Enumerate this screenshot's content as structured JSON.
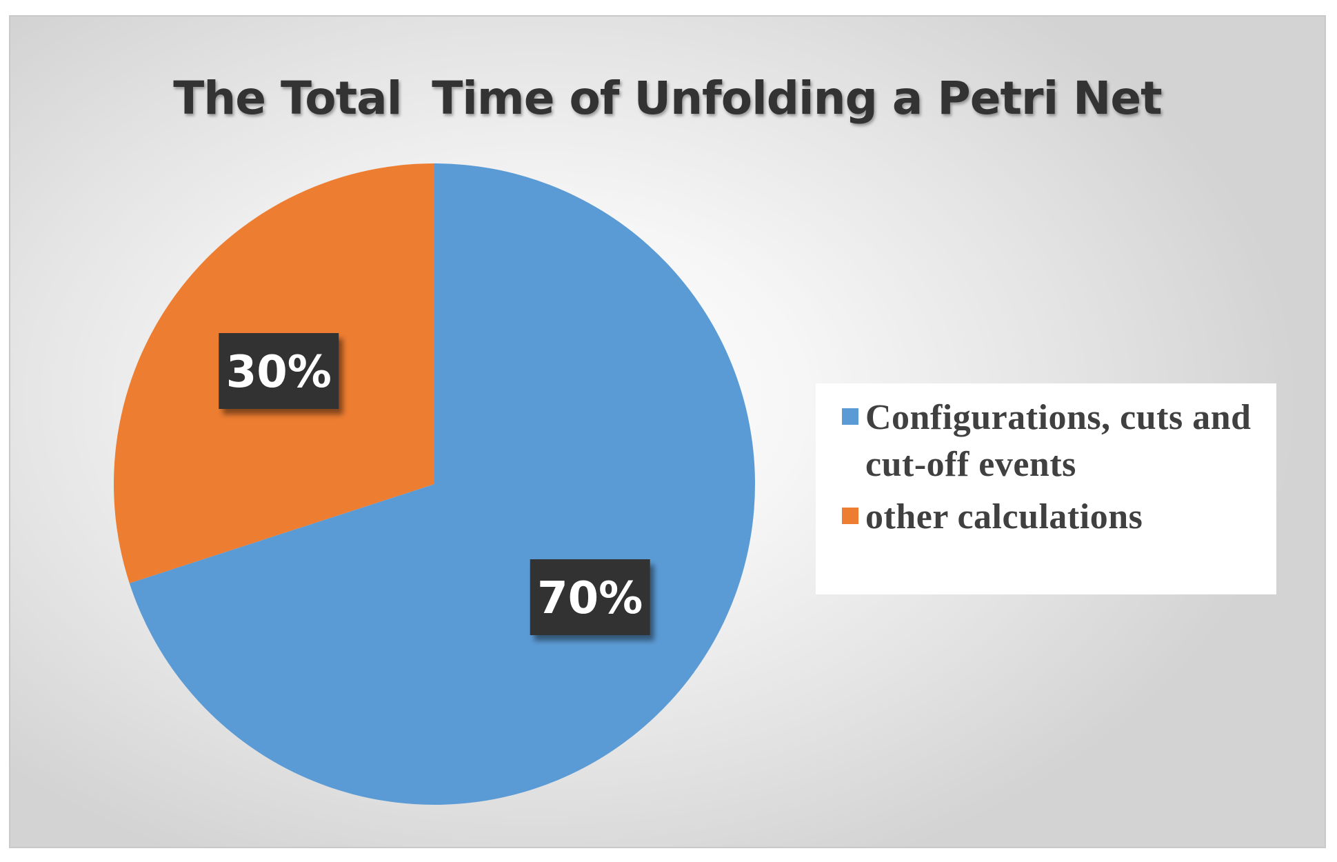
{
  "chart_data": {
    "type": "pie",
    "title": "The Total  Time of Unfolding a Petri Net",
    "slices": [
      {
        "label": "Configurations, cuts and cut-off events",
        "value": 70,
        "data_label": "70%",
        "color": "#5b9bd5"
      },
      {
        "label": "other calculations",
        "value": 30,
        "data_label": "30%",
        "color": "#ed7d31"
      }
    ],
    "legend_position": "right",
    "data_label_bg": "#333333",
    "data_label_color": "#ffffff"
  }
}
